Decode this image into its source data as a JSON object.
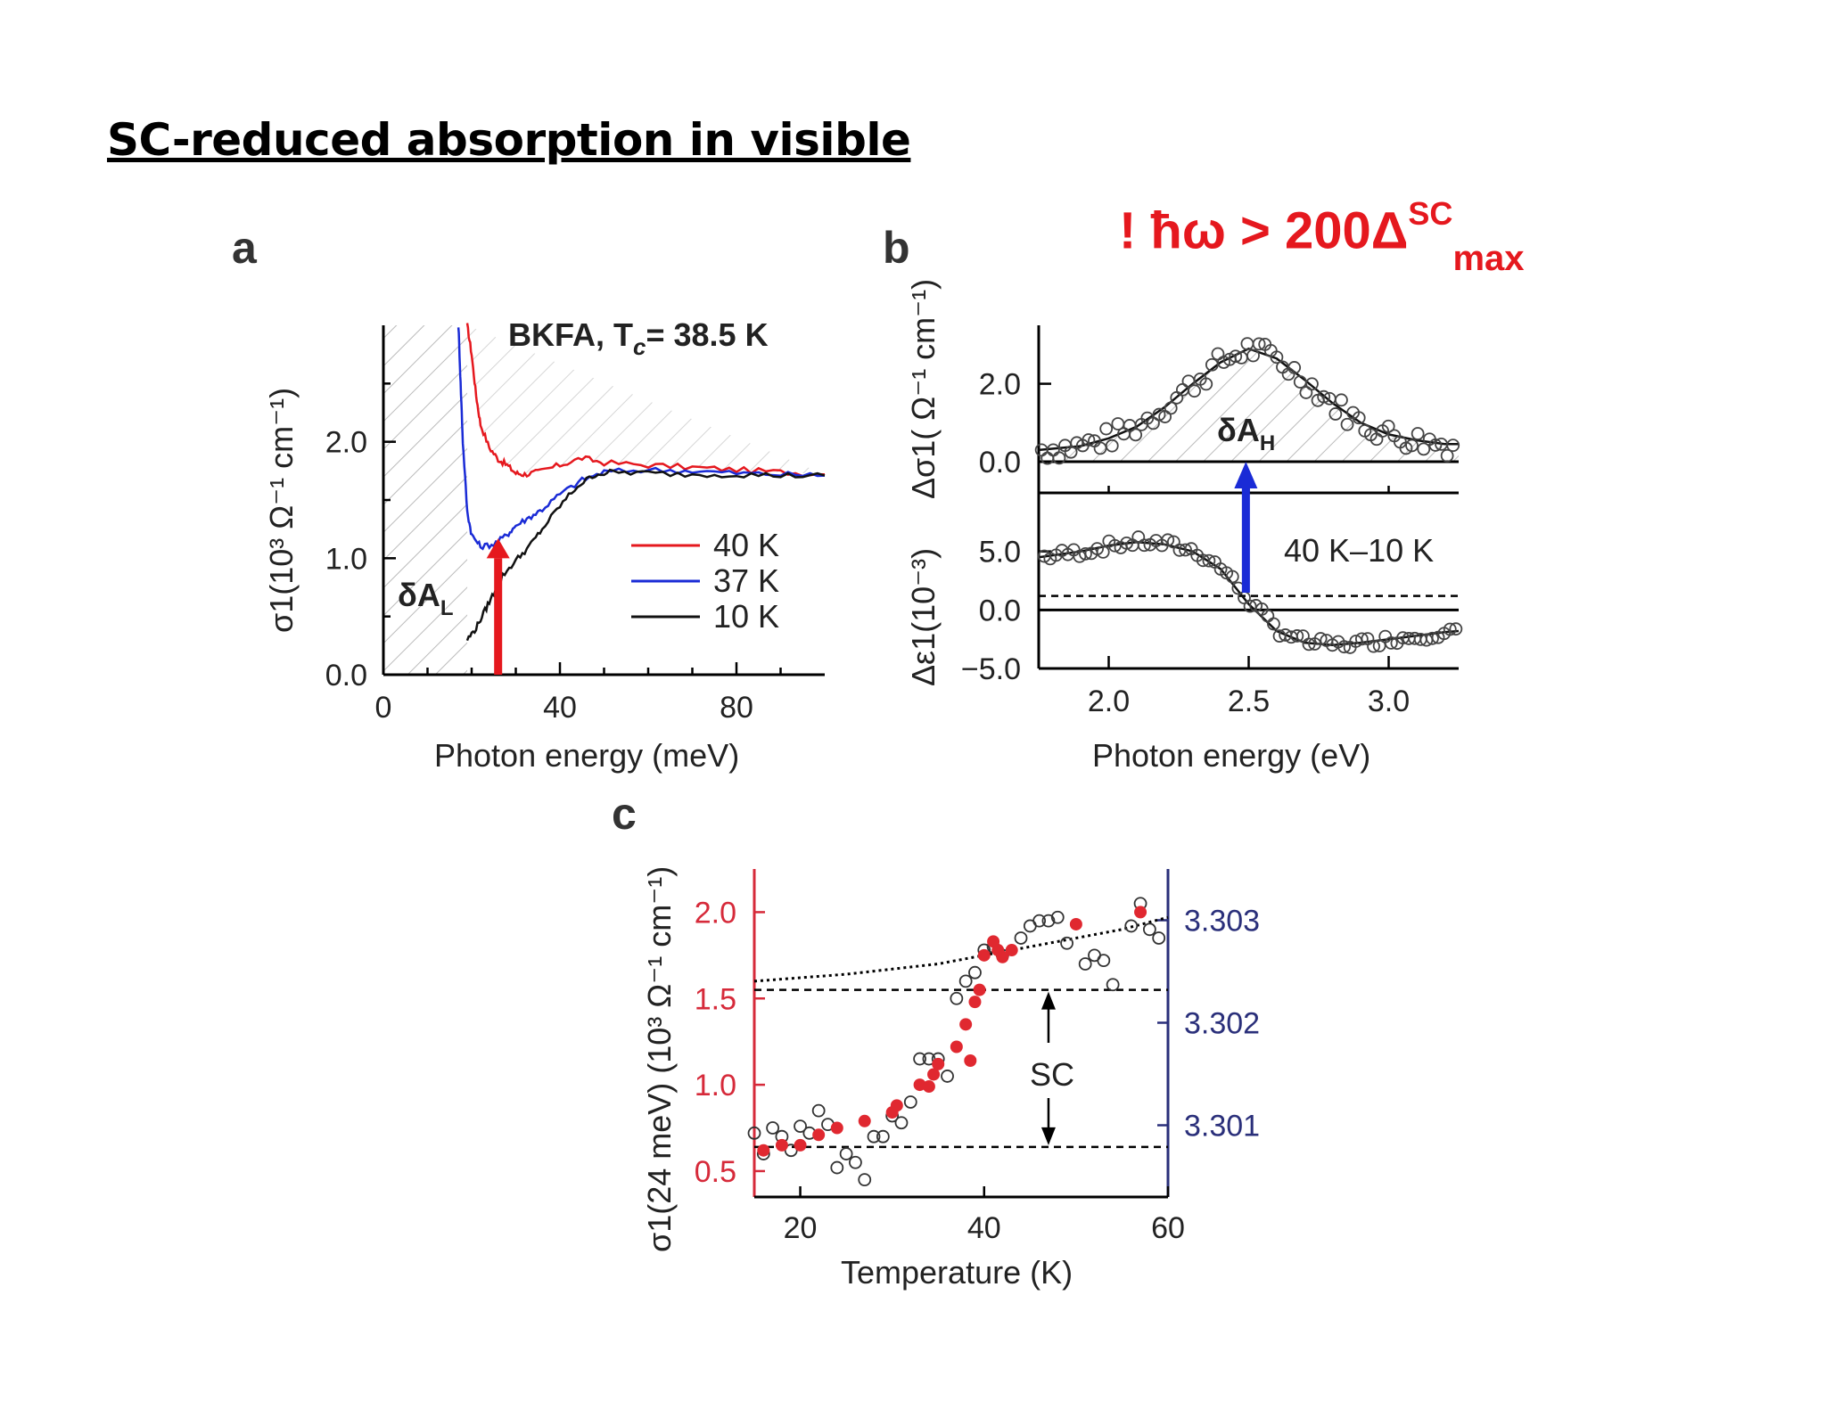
{
  "slide_title": "SC-reduced absorption in visible",
  "note": {
    "prefix": "! ħω > 200Δ",
    "sup": "SC",
    "sub": "max"
  },
  "colors": {
    "red": "#e5181e",
    "blue": "#1a2bd6",
    "navy": "#2a2f7a",
    "crimson": "#d62a3a"
  },
  "chart_data": [
    {
      "panel": "a",
      "type": "line",
      "annotation_title": "BKFA, T",
      "annotation_sub": "c",
      "annotation_value": "= 38.5 K",
      "region_label": "δA",
      "region_sub": "L",
      "xlabel": "Photon energy (meV)",
      "ylabel": "σ1(10³ Ω⁻¹ cm⁻¹)",
      "xlim": [
        0,
        100
      ],
      "ylim": [
        0,
        3.0
      ],
      "xticks": [
        "0",
        "40",
        "80"
      ],
      "yticks": [
        "0.0",
        "1.0",
        "2.0"
      ],
      "legend_position": "center-right",
      "series": [
        {
          "name": "40 K",
          "color": "#e5181e",
          "x": [
            19,
            20,
            21,
            22,
            24,
            26,
            28,
            30,
            32,
            35,
            40,
            45,
            50,
            60,
            70,
            80,
            90,
            100
          ],
          "y": [
            3.0,
            2.75,
            2.4,
            2.15,
            1.95,
            1.85,
            1.8,
            1.73,
            1.72,
            1.74,
            1.8,
            1.86,
            1.82,
            1.8,
            1.78,
            1.76,
            1.74,
            1.72
          ]
        },
        {
          "name": "37 K",
          "color": "#1a2bd6",
          "x": [
            17,
            17.5,
            18,
            19,
            20,
            22,
            25,
            28,
            30,
            33,
            36,
            40,
            45,
            50,
            60,
            70,
            80,
            90,
            100
          ],
          "y": [
            3.0,
            2.5,
            2.0,
            1.4,
            1.2,
            1.1,
            1.12,
            1.2,
            1.28,
            1.35,
            1.42,
            1.55,
            1.67,
            1.74,
            1.76,
            1.75,
            1.73,
            1.72,
            1.71
          ]
        },
        {
          "name": "10 K",
          "color": "#111111",
          "x": [
            19,
            21,
            23,
            25,
            27,
            30,
            33,
            36,
            40,
            44,
            48,
            52,
            60,
            70,
            80,
            90,
            100
          ],
          "y": [
            0.3,
            0.4,
            0.55,
            0.7,
            0.85,
            0.98,
            1.1,
            1.25,
            1.45,
            1.62,
            1.72,
            1.74,
            1.73,
            1.72,
            1.72,
            1.71,
            1.71
          ]
        }
      ]
    },
    {
      "panel": "b",
      "type": "scatter",
      "xlabel": "Photon energy (eV)",
      "ylabel_top": "Δσ1( Ω⁻¹ cm⁻¹)",
      "ylabel_bottom": "Δε1(10⁻³)",
      "xlim": [
        1.75,
        3.25
      ],
      "xticks": [
        "2.0",
        "2.5",
        "3.0"
      ],
      "top": {
        "ylim": [
          -0.8,
          3.5
        ],
        "yticks": [
          "0.0",
          "2.0"
        ],
        "label": "δA",
        "label_sub": "H",
        "fit_x": [
          1.75,
          1.9,
          2.0,
          2.1,
          2.2,
          2.3,
          2.4,
          2.5,
          2.6,
          2.7,
          2.8,
          2.9,
          3.0,
          3.1,
          3.2,
          3.25
        ],
        "fit_y": [
          0.3,
          0.4,
          0.6,
          0.9,
          1.4,
          2.0,
          2.55,
          2.9,
          2.65,
          2.1,
          1.5,
          1.0,
          0.7,
          0.55,
          0.45,
          0.45
        ]
      },
      "bottom": {
        "ylim": [
          -5.0,
          10.0
        ],
        "yticks": [
          "-5.0",
          "0.0",
          "5.0"
        ],
        "legend": "40 K–10 K",
        "fit_x": [
          1.75,
          1.9,
          2.0,
          2.1,
          2.2,
          2.3,
          2.4,
          2.5,
          2.6,
          2.7,
          2.8,
          2.9,
          3.0,
          3.1,
          3.2,
          3.25
        ],
        "fit_y": [
          4.5,
          5.0,
          5.5,
          5.8,
          5.6,
          5.0,
          3.5,
          0.5,
          -1.8,
          -2.8,
          -3.0,
          -2.8,
          -2.5,
          -2.2,
          -1.9,
          -1.8
        ]
      }
    },
    {
      "panel": "c",
      "type": "scatter",
      "xlabel": "Temperature (K)",
      "ylabel": "σ1(24 meV)  (10³ Ω⁻¹ cm⁻¹)",
      "xlim": [
        15,
        60
      ],
      "ylim_left": [
        0.35,
        2.25
      ],
      "ylim_right": [
        3.3003,
        3.3035
      ],
      "xticks": [
        "20",
        "40",
        "60"
      ],
      "yticks_left": [
        "0.5",
        "1.0",
        "1.5",
        "2.0"
      ],
      "yticks_right": [
        "3.301",
        "3.302",
        "3.303"
      ],
      "annotation": "SC",
      "filled_points": {
        "x": [
          16,
          18,
          20,
          22,
          24,
          27,
          30,
          30.5,
          33,
          34,
          34.5,
          35,
          37,
          38,
          38.5,
          39,
          39.5,
          40,
          41,
          41.5,
          42,
          43,
          50,
          57
        ],
        "y": [
          0.62,
          0.65,
          0.65,
          0.71,
          0.75,
          0.79,
          0.84,
          0.88,
          1.0,
          0.99,
          1.06,
          1.12,
          1.22,
          1.35,
          1.14,
          1.48,
          1.55,
          1.75,
          1.83,
          1.78,
          1.74,
          1.78,
          1.93,
          2.0
        ]
      },
      "open_points": {
        "x": [
          15,
          16,
          17,
          18,
          19,
          20,
          21,
          22,
          23,
          24,
          25,
          26,
          27,
          28,
          29,
          30,
          31,
          32,
          33,
          34,
          35,
          36,
          37,
          38,
          39,
          40,
          41,
          42,
          44,
          45,
          46,
          47,
          48,
          49,
          51,
          52,
          53,
          54,
          56,
          57,
          58,
          59
        ],
        "y": [
          0.72,
          0.6,
          0.75,
          0.7,
          0.62,
          0.76,
          0.72,
          0.85,
          0.77,
          0.52,
          0.6,
          0.55,
          0.45,
          0.7,
          0.7,
          0.82,
          0.78,
          0.9,
          1.15,
          1.15,
          1.15,
          1.05,
          1.5,
          1.6,
          1.65,
          1.78,
          1.8,
          1.75,
          1.85,
          1.92,
          1.95,
          1.95,
          1.97,
          1.82,
          1.7,
          1.75,
          1.72,
          1.58,
          1.92,
          2.05,
          1.9,
          1.85
        ]
      },
      "dotted_trend": {
        "x": [
          15,
          20,
          25,
          30,
          35,
          40,
          45,
          50,
          55,
          60
        ],
        "y": [
          1.6,
          1.62,
          1.64,
          1.67,
          1.7,
          1.75,
          1.8,
          1.85,
          1.9,
          1.97
        ]
      },
      "dashed_levels": [
        1.55,
        0.64
      ]
    }
  ]
}
